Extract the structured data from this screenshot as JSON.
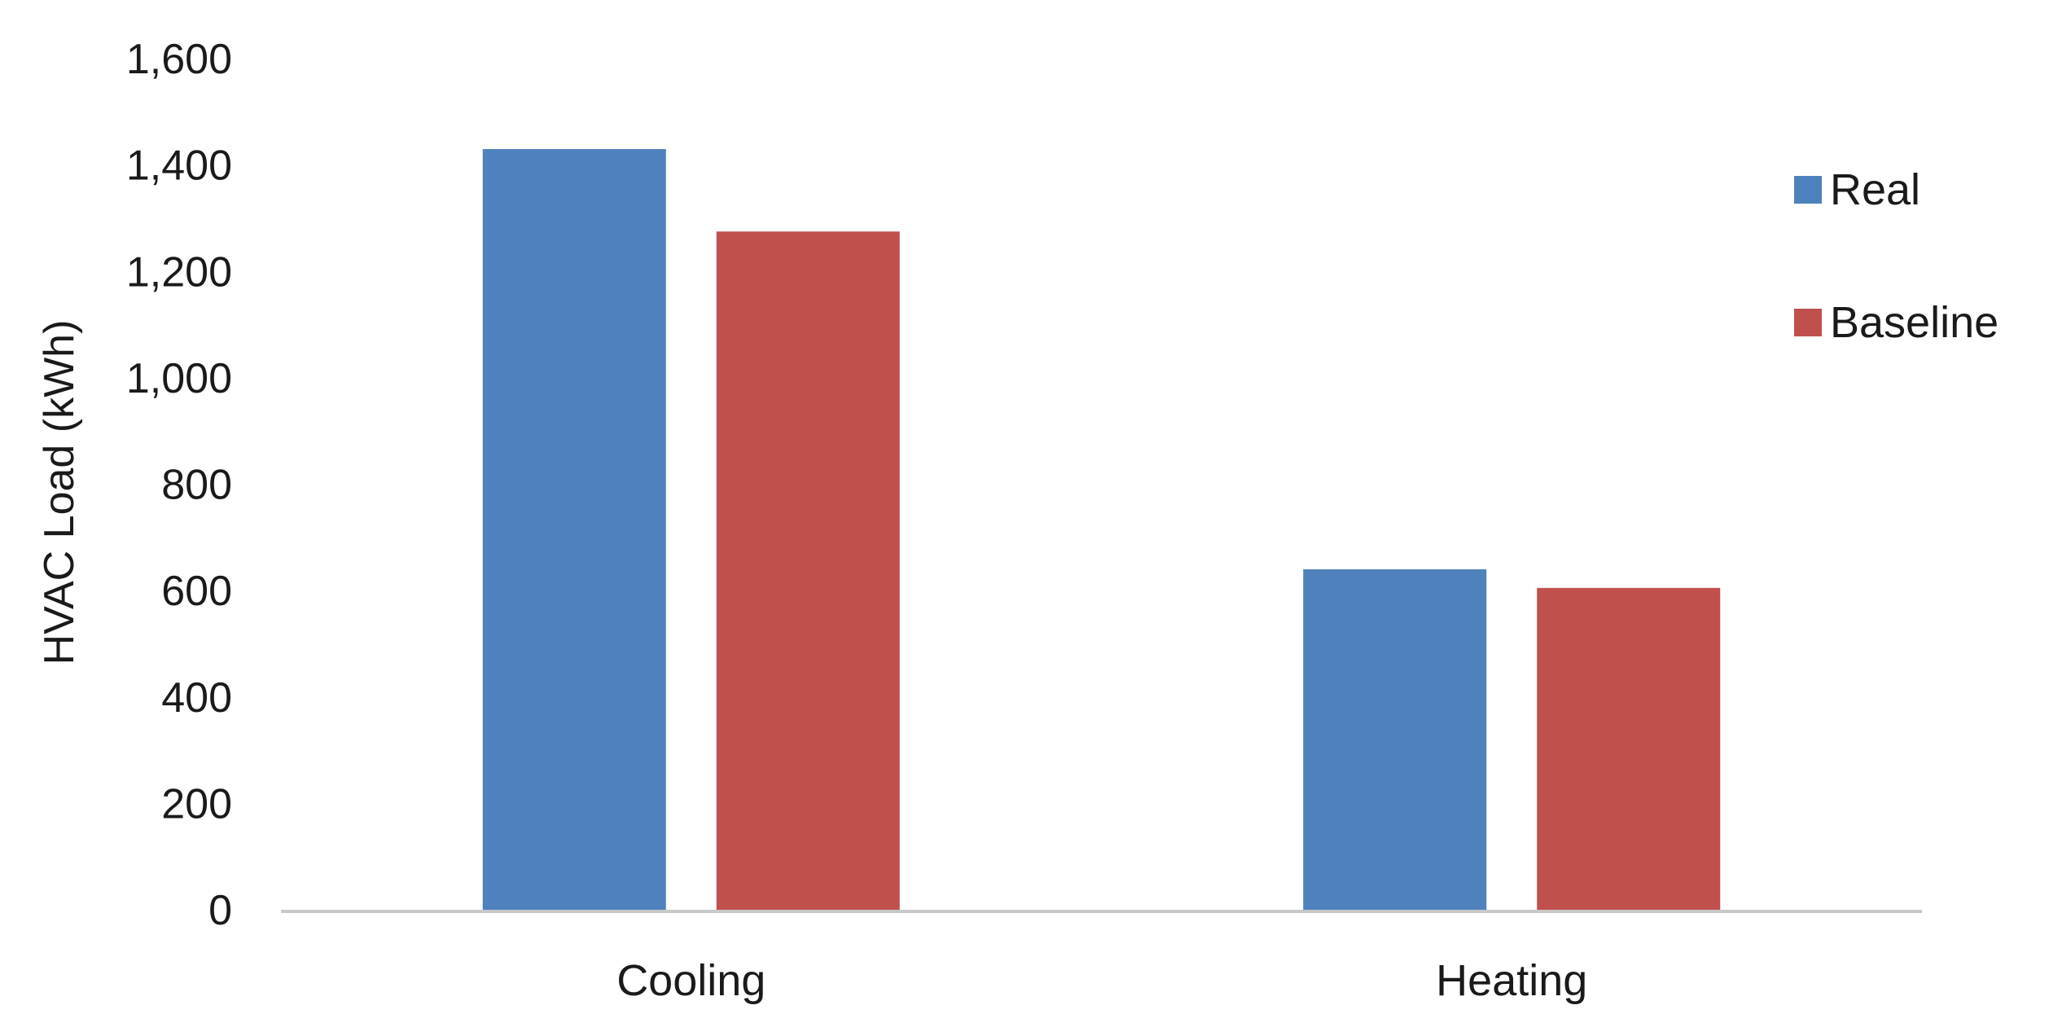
{
  "chart_data": {
    "type": "bar",
    "title": "",
    "xlabel": "",
    "ylabel": "HVAC Load (kWh)",
    "categories": [
      "Cooling",
      "Heating"
    ],
    "series": [
      {
        "name": "Real",
        "values": [
          1430,
          640
        ],
        "color": "#4F81BD"
      },
      {
        "name": "Baseline",
        "values": [
          1275,
          605
        ],
        "color": "#C0504D"
      }
    ],
    "ylim": [
      0,
      1600
    ],
    "yticks": [
      0,
      200,
      400,
      600,
      800,
      1000,
      1200,
      1400,
      1600
    ],
    "ytick_labels": [
      "0",
      "200",
      "400",
      "600",
      "800",
      "1,000",
      "1,200",
      "1,400",
      "1,600"
    ],
    "grid": false,
    "legend_position": "right"
  }
}
